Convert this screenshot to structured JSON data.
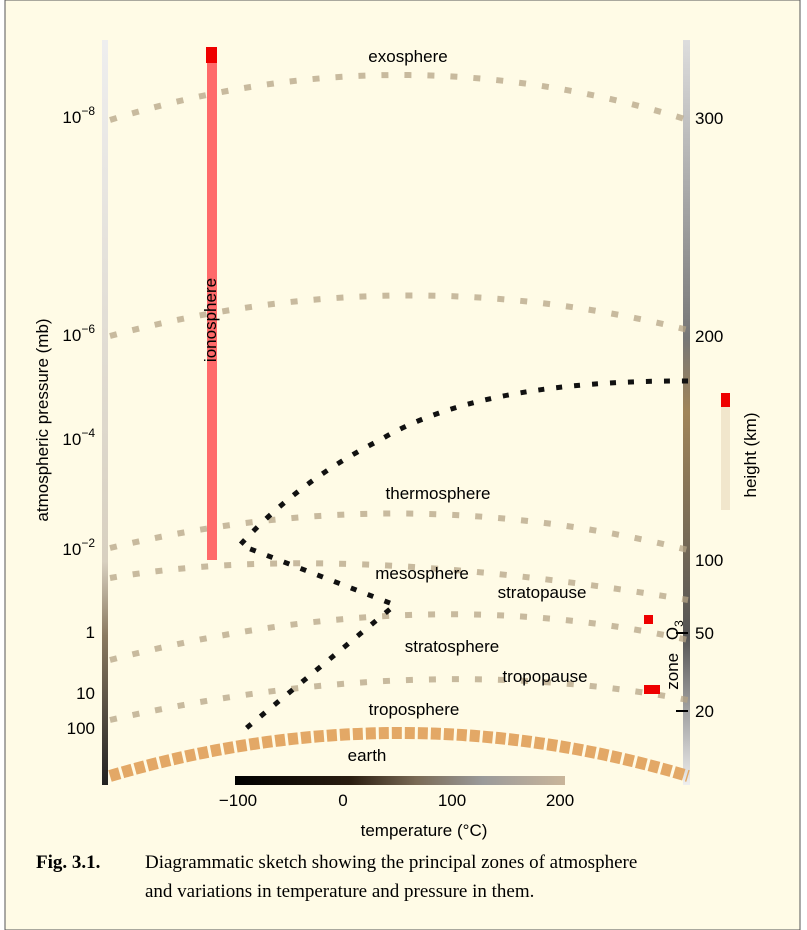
{
  "figure": {
    "zones": {
      "exosphere": "exosphere",
      "thermosphere": "thermosphere",
      "mesosphere": "mesosphere",
      "stratopause": "stratopause",
      "stratosphere": "stratosphere",
      "tropopause": "tropopause",
      "troposphere": "troposphere",
      "earth": "earth",
      "ionosphere": "ionosphere"
    },
    "left_axis": {
      "label": "atmospheric pressure (mb)",
      "ticks": [
        {
          "base": "10",
          "exponent": "−8"
        },
        {
          "base": "10",
          "exponent": "−6"
        },
        {
          "base": "10",
          "exponent": "−4"
        },
        {
          "base": "10",
          "exponent": "−2"
        },
        {
          "base": "1"
        },
        {
          "base": "10"
        },
        {
          "base": "100"
        }
      ]
    },
    "right_axis": {
      "label": "height (km)",
      "ticks": [
        "300",
        "200",
        "100",
        "50",
        "20"
      ]
    },
    "bottom_axis": {
      "label": "temperature (°C)",
      "ticks": [
        "−100",
        "0",
        "100",
        "200"
      ]
    },
    "ozone": {
      "symbol": "O",
      "subscript": "3",
      "word": "zone"
    },
    "caption": {
      "number": "Fig. 3.1.",
      "lines": [
        "Diagrammatic sketch showing the principal zones of atmosphere",
        "and variations in temperature and pressure in them."
      ]
    }
  }
}
